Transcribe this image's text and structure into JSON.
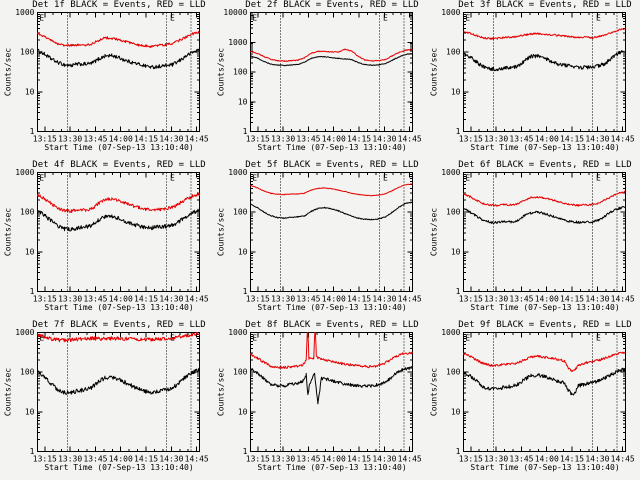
{
  "window": {
    "background": "#f3f3f2"
  },
  "colors": {
    "events": "#000000",
    "lld": "#e60000",
    "frame": "#000000"
  },
  "legend": {
    "black_series": "Events",
    "red_series": "LLD"
  },
  "axis": {
    "ylabel": "Counts/sec",
    "xlabel": "Start Time (07-Sep-13 13:10:40)",
    "xtick_labels": [
      "13:15",
      "13:30",
      "13:45",
      "14:00",
      "14:15",
      "14:30",
      "14:45"
    ],
    "xtick_minutes": [
      4.33,
      19.33,
      34.33,
      49.33,
      64.33,
      79.33,
      94.33
    ],
    "x_range_minutes": [
      0,
      96
    ],
    "minor_tick_step_minutes": 5,
    "dotted_line_minutes": [
      17.8,
      76.5,
      91
    ],
    "flag_label": "E",
    "flag_minutes": [
      1,
      78.5
    ]
  },
  "chart_data": [
    {
      "type": "line",
      "title": "Det 1f BLACK = Events, RED = LLD",
      "ylog": true,
      "ylim": [
        1,
        1000
      ],
      "ytick_labels": [
        "1",
        "10",
        "100",
        "1000"
      ],
      "x_minutes": [
        0,
        4,
        8,
        12,
        16,
        20,
        24,
        28,
        32,
        36,
        40,
        44,
        48,
        52,
        56,
        60,
        64,
        68,
        72,
        76,
        80,
        84,
        88,
        92,
        96
      ],
      "series": [
        {
          "name": "Events",
          "color": "#000000",
          "jitter": 0.045,
          "values": [
            110,
            90,
            68,
            55,
            48,
            46,
            50,
            50,
            52,
            66,
            80,
            82,
            74,
            62,
            55,
            50,
            45,
            42,
            44,
            46,
            48,
            60,
            80,
            100,
            115
          ]
        },
        {
          "name": "LLD",
          "color": "#e60000",
          "jitter": 0.03,
          "values": [
            300,
            250,
            195,
            165,
            150,
            148,
            155,
            150,
            160,
            195,
            230,
            225,
            205,
            185,
            165,
            150,
            145,
            140,
            150,
            155,
            165,
            200,
            240,
            290,
            330
          ]
        }
      ]
    },
    {
      "type": "line",
      "title": "Det 2f BLACK = Events, RED = LLD",
      "ylog": true,
      "ylim": [
        1,
        10000
      ],
      "ytick_labels": [
        "1",
        "10",
        "100",
        "1000",
        "10000"
      ],
      "x_minutes": [
        0,
        4,
        8,
        12,
        16,
        20,
        24,
        28,
        32,
        36,
        40,
        44,
        48,
        52,
        56,
        60,
        64,
        68,
        72,
        76,
        80,
        84,
        88,
        92,
        96
      ],
      "series": [
        {
          "name": "Events",
          "color": "#000000",
          "jitter": 0.012,
          "values": [
            350,
            295,
            225,
            185,
            170,
            166,
            172,
            180,
            210,
            290,
            325,
            330,
            300,
            285,
            275,
            260,
            205,
            178,
            168,
            174,
            190,
            250,
            320,
            390,
            415
          ]
        },
        {
          "name": "LLD",
          "color": "#e60000",
          "jitter": 0.015,
          "values": [
            500,
            420,
            330,
            270,
            240,
            232,
            240,
            252,
            300,
            430,
            490,
            500,
            470,
            470,
            580,
            500,
            330,
            250,
            235,
            242,
            265,
            350,
            450,
            540,
            570
          ]
        }
      ]
    },
    {
      "type": "line",
      "title": "Det 3f BLACK = Events, RED = LLD",
      "ylog": true,
      "ylim": [
        1,
        1000
      ],
      "ytick_labels": [
        "1",
        "10",
        "100",
        "1000"
      ],
      "x_minutes": [
        0,
        4,
        8,
        12,
        16,
        20,
        24,
        28,
        32,
        36,
        40,
        44,
        48,
        52,
        56,
        60,
        64,
        68,
        72,
        76,
        80,
        84,
        88,
        92,
        96
      ],
      "series": [
        {
          "name": "Events",
          "color": "#000000",
          "jitter": 0.045,
          "values": [
            95,
            75,
            55,
            42,
            38,
            37,
            40,
            41,
            43,
            60,
            78,
            80,
            72,
            58,
            50,
            47,
            44,
            40,
            42,
            41,
            45,
            52,
            70,
            95,
            108
          ]
        },
        {
          "name": "LLD",
          "color": "#e60000",
          "jitter": 0.022,
          "values": [
            330,
            300,
            258,
            230,
            218,
            222,
            235,
            240,
            250,
            270,
            290,
            295,
            285,
            275,
            265,
            255,
            245,
            232,
            238,
            230,
            245,
            270,
            310,
            360,
            390
          ]
        }
      ]
    },
    {
      "type": "line",
      "title": "Det 4f BLACK = Events, RED = LLD",
      "ylog": true,
      "ylim": [
        1,
        1000
      ],
      "ytick_labels": [
        "1",
        "10",
        "100",
        "1000"
      ],
      "x_minutes": [
        0,
        4,
        8,
        12,
        16,
        20,
        24,
        28,
        32,
        36,
        40,
        44,
        48,
        52,
        56,
        60,
        64,
        68,
        72,
        76,
        80,
        84,
        88,
        92,
        96
      ],
      "series": [
        {
          "name": "Events",
          "color": "#000000",
          "jitter": 0.05,
          "values": [
            105,
            85,
            60,
            45,
            38,
            36,
            40,
            42,
            45,
            62,
            78,
            80,
            70,
            58,
            50,
            45,
            42,
            40,
            43,
            44,
            47,
            58,
            78,
            98,
            112
          ]
        },
        {
          "name": "LLD",
          "color": "#e60000",
          "jitter": 0.04,
          "values": [
            270,
            225,
            165,
            125,
            108,
            105,
            115,
            112,
            120,
            165,
            210,
            215,
            195,
            170,
            148,
            130,
            120,
            112,
            118,
            122,
            132,
            165,
            210,
            258,
            290
          ]
        }
      ]
    },
    {
      "type": "line",
      "title": "Det 5f BLACK = Events, RED = LLD",
      "ylog": true,
      "ylim": [
        1,
        1000
      ],
      "ytick_labels": [
        "1",
        "10",
        "100",
        "1000"
      ],
      "x_minutes": [
        0,
        4,
        8,
        12,
        16,
        20,
        24,
        28,
        32,
        36,
        40,
        44,
        48,
        52,
        56,
        60,
        64,
        68,
        72,
        76,
        80,
        84,
        88,
        92,
        96
      ],
      "series": [
        {
          "name": "Events",
          "color": "#000000",
          "jitter": 0.012,
          "values": [
            160,
            130,
            100,
            82,
            73,
            71,
            74,
            76,
            80,
            105,
            125,
            130,
            122,
            108,
            92,
            80,
            70,
            66,
            65,
            68,
            75,
            100,
            135,
            165,
            180
          ]
        },
        {
          "name": "LLD",
          "color": "#e60000",
          "jitter": 0.008,
          "values": [
            470,
            410,
            340,
            300,
            282,
            278,
            285,
            288,
            300,
            360,
            400,
            405,
            390,
            360,
            330,
            300,
            280,
            268,
            262,
            270,
            290,
            350,
            430,
            490,
            520
          ]
        }
      ]
    },
    {
      "type": "line",
      "title": "Det 6f BLACK = Events, RED = LLD",
      "ylog": true,
      "ylim": [
        1,
        1000
      ],
      "ytick_labels": [
        "1",
        "10",
        "100",
        "1000"
      ],
      "x_minutes": [
        0,
        4,
        8,
        12,
        16,
        20,
        24,
        28,
        32,
        36,
        40,
        44,
        48,
        52,
        56,
        60,
        64,
        68,
        72,
        76,
        80,
        84,
        88,
        92,
        96
      ],
      "series": [
        {
          "name": "Events",
          "color": "#000000",
          "jitter": 0.03,
          "values": [
            125,
            100,
            78,
            62,
            56,
            55,
            58,
            57,
            60,
            80,
            95,
            100,
            92,
            80,
            72,
            62,
            58,
            55,
            56,
            57,
            62,
            80,
            105,
            125,
            135
          ]
        },
        {
          "name": "LLD",
          "color": "#e60000",
          "jitter": 0.022,
          "values": [
            290,
            245,
            195,
            162,
            150,
            148,
            155,
            152,
            160,
            200,
            235,
            240,
            225,
            205,
            185,
            165,
            155,
            148,
            152,
            155,
            165,
            205,
            250,
            300,
            330
          ]
        }
      ]
    },
    {
      "type": "line",
      "title": "Det 7f BLACK = Events, RED = LLD",
      "ylog": true,
      "ylim": [
        1,
        1000
      ],
      "ytick_labels": [
        "1",
        "10",
        "100",
        "1000"
      ],
      "x_minutes": [
        0,
        4,
        8,
        12,
        16,
        20,
        24,
        28,
        32,
        36,
        40,
        44,
        48,
        52,
        56,
        60,
        64,
        68,
        72,
        76,
        80,
        84,
        88,
        92,
        96
      ],
      "series": [
        {
          "name": "Events",
          "color": "#000000",
          "jitter": 0.05,
          "values": [
            100,
            78,
            52,
            36,
            31,
            30,
            34,
            36,
            40,
            58,
            72,
            75,
            68,
            55,
            45,
            38,
            33,
            31,
            33,
            36,
            40,
            55,
            78,
            100,
            112
          ]
        },
        {
          "name": "LLD",
          "color": "#e60000",
          "jitter": 0.045,
          "values": [
            900,
            760,
            690,
            650,
            640,
            650,
            680,
            700,
            720,
            700,
            690,
            700,
            710,
            700,
            690,
            680,
            670,
            660,
            680,
            700,
            720,
            780,
            850,
            900,
            950
          ]
        }
      ]
    },
    {
      "type": "line",
      "title": "Det 8f BLACK = Events, RED = LLD",
      "ylog": true,
      "ylim": [
        1,
        1000
      ],
      "ytick_labels": [
        "1",
        "10",
        "100",
        "1000"
      ],
      "x_minutes": [
        0,
        4,
        8,
        12,
        16,
        20,
        24,
        28,
        31,
        33,
        34,
        35,
        38,
        40,
        42,
        46,
        50,
        54,
        58,
        62,
        66,
        70,
        74,
        78,
        82,
        86,
        90,
        96
      ],
      "series": [
        {
          "name": "Events",
          "color": "#000000",
          "jitter": 0.04,
          "x": [
            0,
            4,
            8,
            12,
            16,
            20,
            24,
            28,
            31,
            33,
            34,
            35,
            38,
            40,
            42,
            46,
            50,
            54,
            58,
            62,
            66,
            70,
            74,
            78,
            82,
            86,
            90,
            96
          ],
          "values": [
            120,
            95,
            68,
            50,
            46,
            45,
            50,
            52,
            60,
            85,
            25,
            50,
            90,
            16,
            70,
            65,
            58,
            52,
            48,
            46,
            45,
            44,
            47,
            52,
            65,
            90,
            115,
            132
          ]
        },
        {
          "name": "LLD",
          "color": "#e60000",
          "jitter": 0.028,
          "x": [
            0,
            4,
            8,
            12,
            16,
            20,
            24,
            28,
            31,
            33,
            33.8,
            34.6,
            37.5,
            38.3,
            39,
            42,
            46,
            50,
            54,
            58,
            62,
            66,
            70,
            74,
            78,
            82,
            86,
            90,
            96
          ],
          "values": [
            280,
            230,
            175,
            142,
            132,
            130,
            138,
            140,
            155,
            200,
            1800,
            220,
            230,
            2500,
            240,
            210,
            195,
            180,
            165,
            155,
            148,
            140,
            138,
            142,
            155,
            195,
            245,
            290,
            310
          ]
        }
      ]
    },
    {
      "type": "line",
      "title": "Det 9f BLACK = Events, RED = LLD",
      "ylog": true,
      "ylim": [
        1,
        1000
      ],
      "ytick_labels": [
        "1",
        "10",
        "100",
        "1000"
      ],
      "x_minutes": [
        0,
        4,
        8,
        12,
        16,
        20,
        24,
        28,
        32,
        36,
        40,
        44,
        48,
        52,
        56,
        60,
        62,
        64,
        66,
        68,
        72,
        76,
        80,
        84,
        88,
        92,
        96
      ],
      "series": [
        {
          "name": "Events",
          "color": "#000000",
          "jitter": 0.045,
          "values": [
            100,
            80,
            58,
            42,
            38,
            37,
            42,
            44,
            48,
            65,
            82,
            85,
            78,
            68,
            60,
            52,
            35,
            28,
            30,
            45,
            50,
            55,
            60,
            72,
            90,
            108,
            118
          ]
        },
        {
          "name": "LLD",
          "color": "#e60000",
          "jitter": 0.028,
          "values": [
            290,
            255,
            200,
            165,
            150,
            148,
            158,
            162,
            170,
            205,
            240,
            250,
            240,
            225,
            210,
            190,
            130,
            105,
            112,
            150,
            170,
            185,
            200,
            225,
            260,
            300,
            320
          ]
        }
      ]
    }
  ]
}
